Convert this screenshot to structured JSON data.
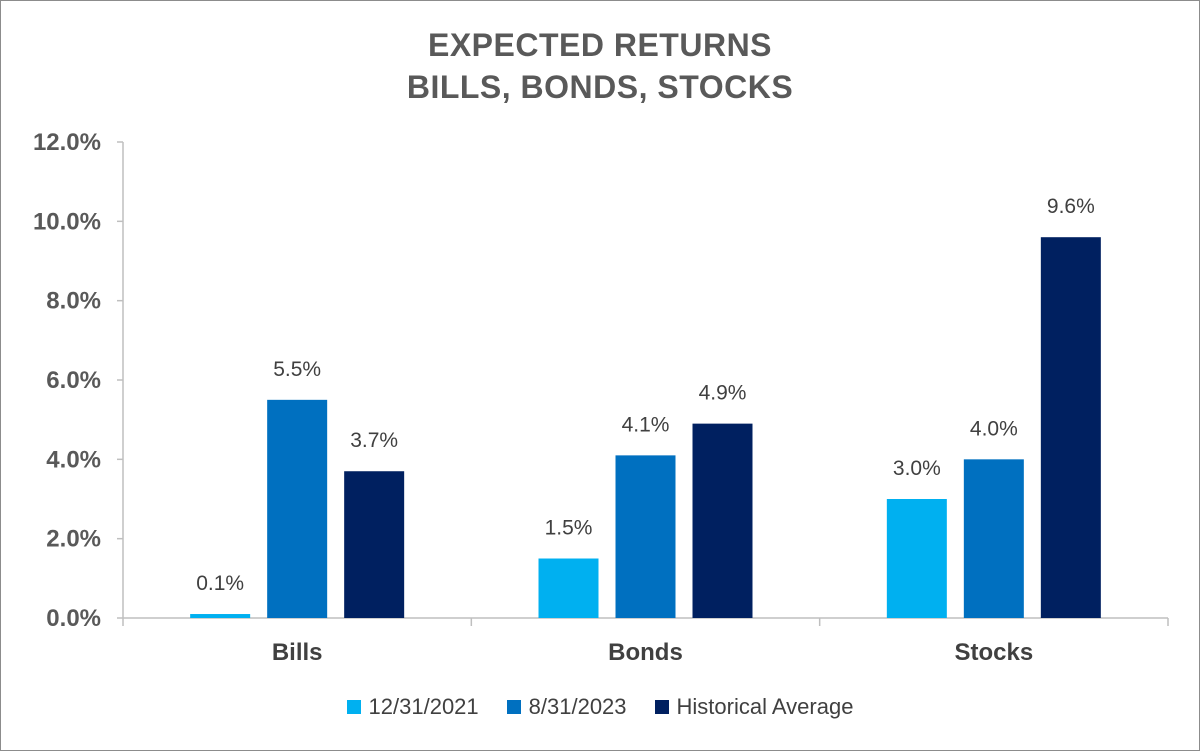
{
  "colors": {
    "series_1": "#00b0f0",
    "series_2": "#0070c0",
    "series_3": "#002060",
    "axis": "#bfbfbf",
    "text": "#404040"
  },
  "chart_data": {
    "type": "bar",
    "title_lines": [
      "EXPECTED RETURNS",
      "BILLS, BONDS, STOCKS"
    ],
    "categories": [
      "Bills",
      "Bonds",
      "Stocks"
    ],
    "series": [
      {
        "name": "12/31/2021",
        "values": [
          0.1,
          1.5,
          3.0
        ],
        "labels": [
          "0.1%",
          "1.5%",
          "3.0%"
        ]
      },
      {
        "name": "8/31/2023",
        "values": [
          5.5,
          4.1,
          4.0
        ],
        "labels": [
          "5.5%",
          "4.1%",
          "4.0%"
        ]
      },
      {
        "name": "Historical Average",
        "values": [
          3.7,
          4.9,
          9.6
        ],
        "labels": [
          "3.7%",
          "4.9%",
          "9.6%"
        ]
      }
    ],
    "ylim": [
      0,
      12
    ],
    "yticks": [
      0,
      2,
      4,
      6,
      8,
      10,
      12
    ],
    "ytick_labels": [
      "0.0%",
      "2.0%",
      "4.0%",
      "6.0%",
      "8.0%",
      "10.0%",
      "12.0%"
    ],
    "grid": false,
    "legend_position": "bottom"
  }
}
